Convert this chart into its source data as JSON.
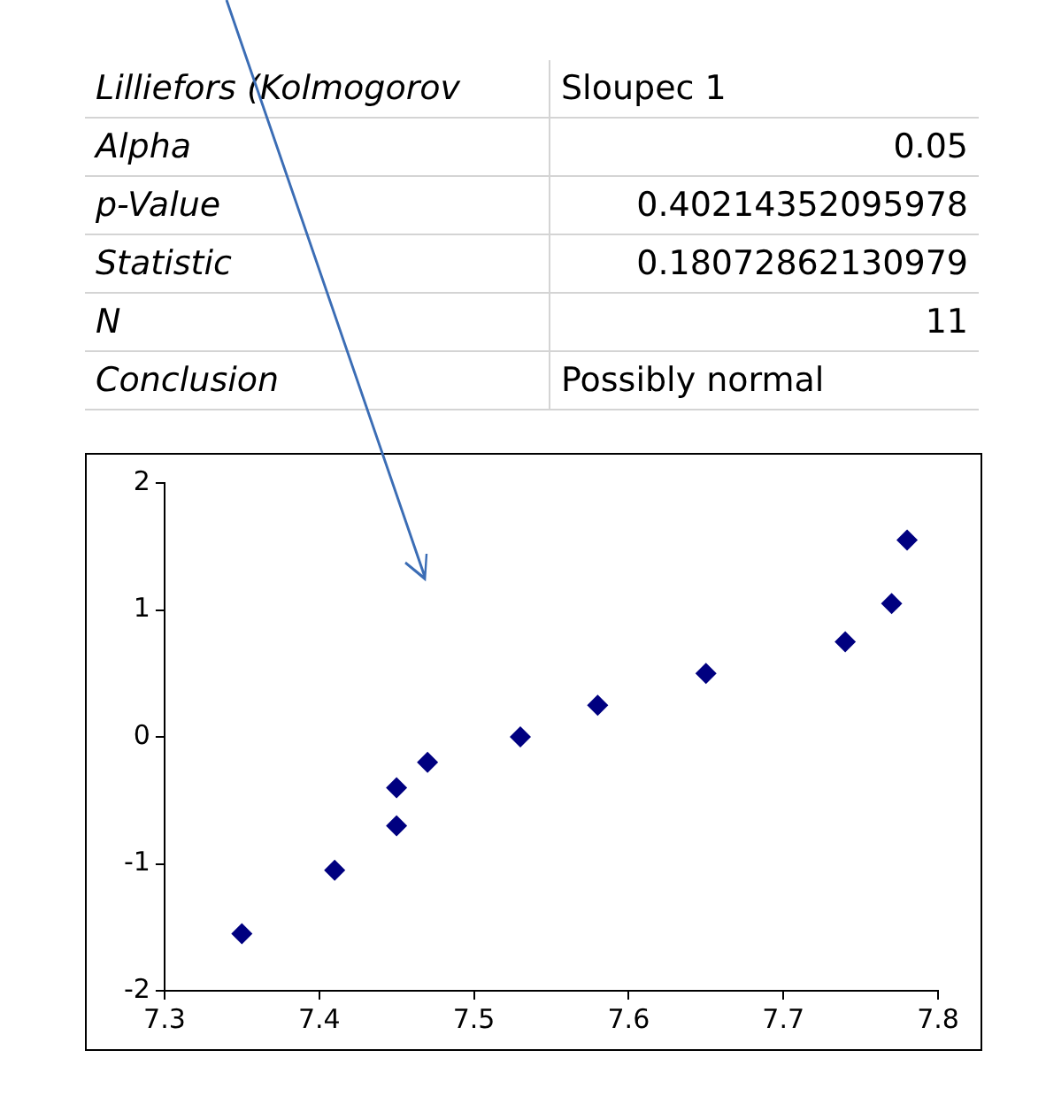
{
  "chart_data": [
    {
      "type": "other",
      "annotations": [
        "Lilliefors (Kolmogorov",
        "Sloupec 1",
        "Alpha",
        "0.05",
        "p-Value",
        "0.40214352095978",
        "Statistic",
        "0.18072862130979",
        "N",
        "11",
        "Conclusion",
        "Possibly normal"
      ]
    },
    {
      "type": "scatter",
      "x": [
        7.35,
        7.41,
        7.45,
        7.45,
        7.47,
        7.53,
        7.58,
        7.65,
        7.74,
        7.77,
        7.78
      ],
      "values": [
        -1.55,
        -1.05,
        -0.7,
        -0.4,
        -0.2,
        0,
        0.25,
        0.5,
        0.75,
        1.05,
        1.55
      ],
      "color": "#000080",
      "marker": "diamond",
      "xlim": [
        7.3,
        7.8
      ],
      "xticks": [
        7.3,
        7.4,
        7.5,
        7.6,
        7.7,
        7.8
      ],
      "ylim": [
        -2,
        2
      ],
      "yticks": [
        -2,
        -1,
        0,
        1,
        2
      ],
      "grid": false
    }
  ]
}
